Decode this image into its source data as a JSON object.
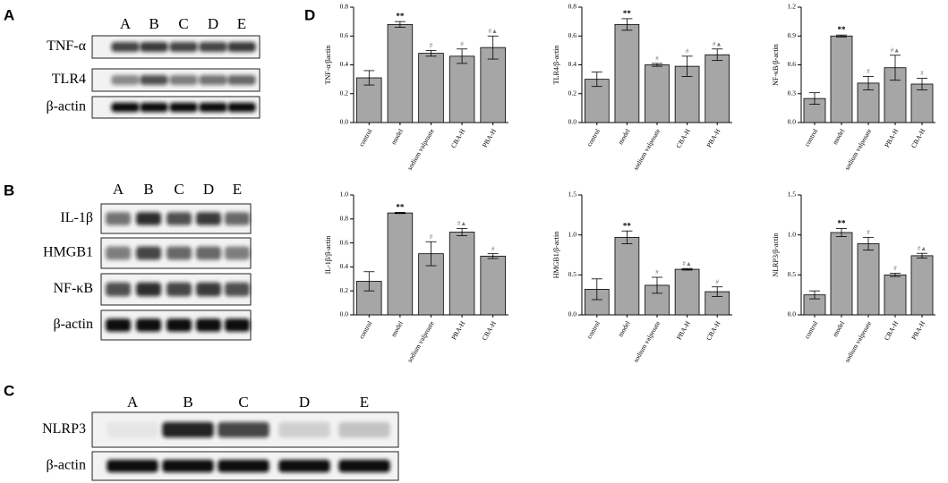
{
  "panels": [
    "A",
    "B",
    "C",
    "D"
  ],
  "blots": [
    {
      "lanes": [
        "A",
        "B",
        "C",
        "D",
        "E"
      ],
      "rows": [
        "TNF-α",
        "TLR4",
        "β-actin"
      ]
    },
    {
      "lanes": [
        "A",
        "B",
        "C",
        "D",
        "E"
      ],
      "rows": [
        "IL-1β",
        "HMGB1",
        "NF-κB",
        "β-actin"
      ]
    },
    {
      "lanes": [
        "A",
        "B",
        "C",
        "D",
        "E"
      ],
      "rows": [
        "NLRP3",
        "β-actin"
      ]
    }
  ],
  "chart_data": [
    {
      "type": "bar",
      "y_label": "TNF-α/βactin",
      "categories": [
        "control",
        "model",
        "sodium valproate",
        "CBA-H",
        "PBA-H"
      ],
      "values": [
        0.31,
        0.68,
        0.48,
        0.46,
        0.52
      ],
      "errors": [
        0.05,
        0.02,
        0.02,
        0.05,
        0.08
      ],
      "annotations": [
        null,
        "**",
        "#",
        "#",
        "#▲"
      ],
      "color": "#a6a6a6",
      "ylim": [
        0,
        0.8
      ],
      "yticks": [
        {
          "value": 0,
          "label": "0.0"
        },
        0.2,
        0.4,
        0.6,
        0.8
      ]
    },
    {
      "type": "bar",
      "y_label": "TLR4/β-actin",
      "categories": [
        "control",
        "model",
        "sodium valproate",
        "CBA-H",
        "PBA-H"
      ],
      "values": [
        0.3,
        0.68,
        0.4,
        0.39,
        0.47
      ],
      "errors": [
        0.05,
        0.04,
        0.01,
        0.07,
        0.04
      ],
      "annotations": [
        null,
        "**",
        "#",
        "#",
        "#▲"
      ],
      "color": "#a6a6a6",
      "ylim": [
        0,
        0.8
      ],
      "yticks": [
        {
          "value": 0,
          "label": "0.0"
        },
        0.2,
        0.4,
        0.6,
        0.8
      ]
    },
    {
      "type": "bar",
      "y_label": "NF-κB/β-actin",
      "categories": [
        "control",
        "model",
        "sodium valproate",
        "PBA-H",
        "CBA-H"
      ],
      "values": [
        0.25,
        0.9,
        0.41,
        0.57,
        0.4
      ],
      "errors": [
        0.06,
        0.01,
        0.07,
        0.13,
        0.06
      ],
      "annotations": [
        null,
        "**",
        "#",
        "#▲",
        "#"
      ],
      "color": "#a6a6a6",
      "ylim": [
        0,
        1.2
      ],
      "yticks": [
        {
          "value": 0,
          "label": "0.0"
        },
        0.3,
        0.6,
        0.9,
        1.2
      ]
    },
    {
      "type": "bar",
      "y_label": "IL-1β/β-actin",
      "categories": [
        "control",
        "model",
        "sodium valproate",
        "PBA-H",
        "CBA-H"
      ],
      "values": [
        0.28,
        0.85,
        0.51,
        0.69,
        0.49
      ],
      "errors": [
        0.08,
        0.005,
        0.1,
        0.03,
        0.02
      ],
      "annotations": [
        null,
        "**",
        "#",
        "#▲",
        "#"
      ],
      "color": "#a6a6a6",
      "ylim": [
        0,
        1.0
      ],
      "yticks": [
        {
          "value": 0,
          "label": "0.0"
        },
        0.2,
        0.4,
        0.6,
        0.8,
        {
          "value": 1,
          "label": "1.0"
        }
      ]
    },
    {
      "type": "bar",
      "y_label": "HMGB1/β-actin",
      "categories": [
        "control",
        "model",
        "sodium valproate",
        "PBA-H",
        "CBA-H"
      ],
      "values": [
        0.32,
        0.97,
        0.37,
        0.57,
        0.29
      ],
      "errors": [
        0.13,
        0.08,
        0.1,
        0.01,
        0.06
      ],
      "annotations": [
        null,
        "**",
        "#",
        "#▲",
        "#"
      ],
      "color": "#a6a6a6",
      "ylim": [
        0,
        1.5
      ],
      "yticks": [
        {
          "value": 0,
          "label": "0.0"
        },
        0.5,
        {
          "value": 1,
          "label": "1.0"
        },
        1.5
      ]
    },
    {
      "type": "bar",
      "y_label": "NLRP3/β-actin",
      "categories": [
        "control",
        "model",
        "sodium valproate",
        "CBA-H",
        "PBA-H"
      ],
      "values": [
        0.25,
        1.03,
        0.89,
        0.5,
        0.74
      ],
      "errors": [
        0.05,
        0.05,
        0.08,
        0.02,
        0.03
      ],
      "annotations": [
        null,
        "**",
        "#",
        "#",
        "#▲"
      ],
      "color": "#a6a6a6",
      "ylim": [
        0,
        1.5
      ],
      "yticks": [
        {
          "value": 0,
          "label": "0.0"
        },
        0.5,
        {
          "value": 1,
          "label": "1.0"
        },
        1.5
      ]
    }
  ]
}
